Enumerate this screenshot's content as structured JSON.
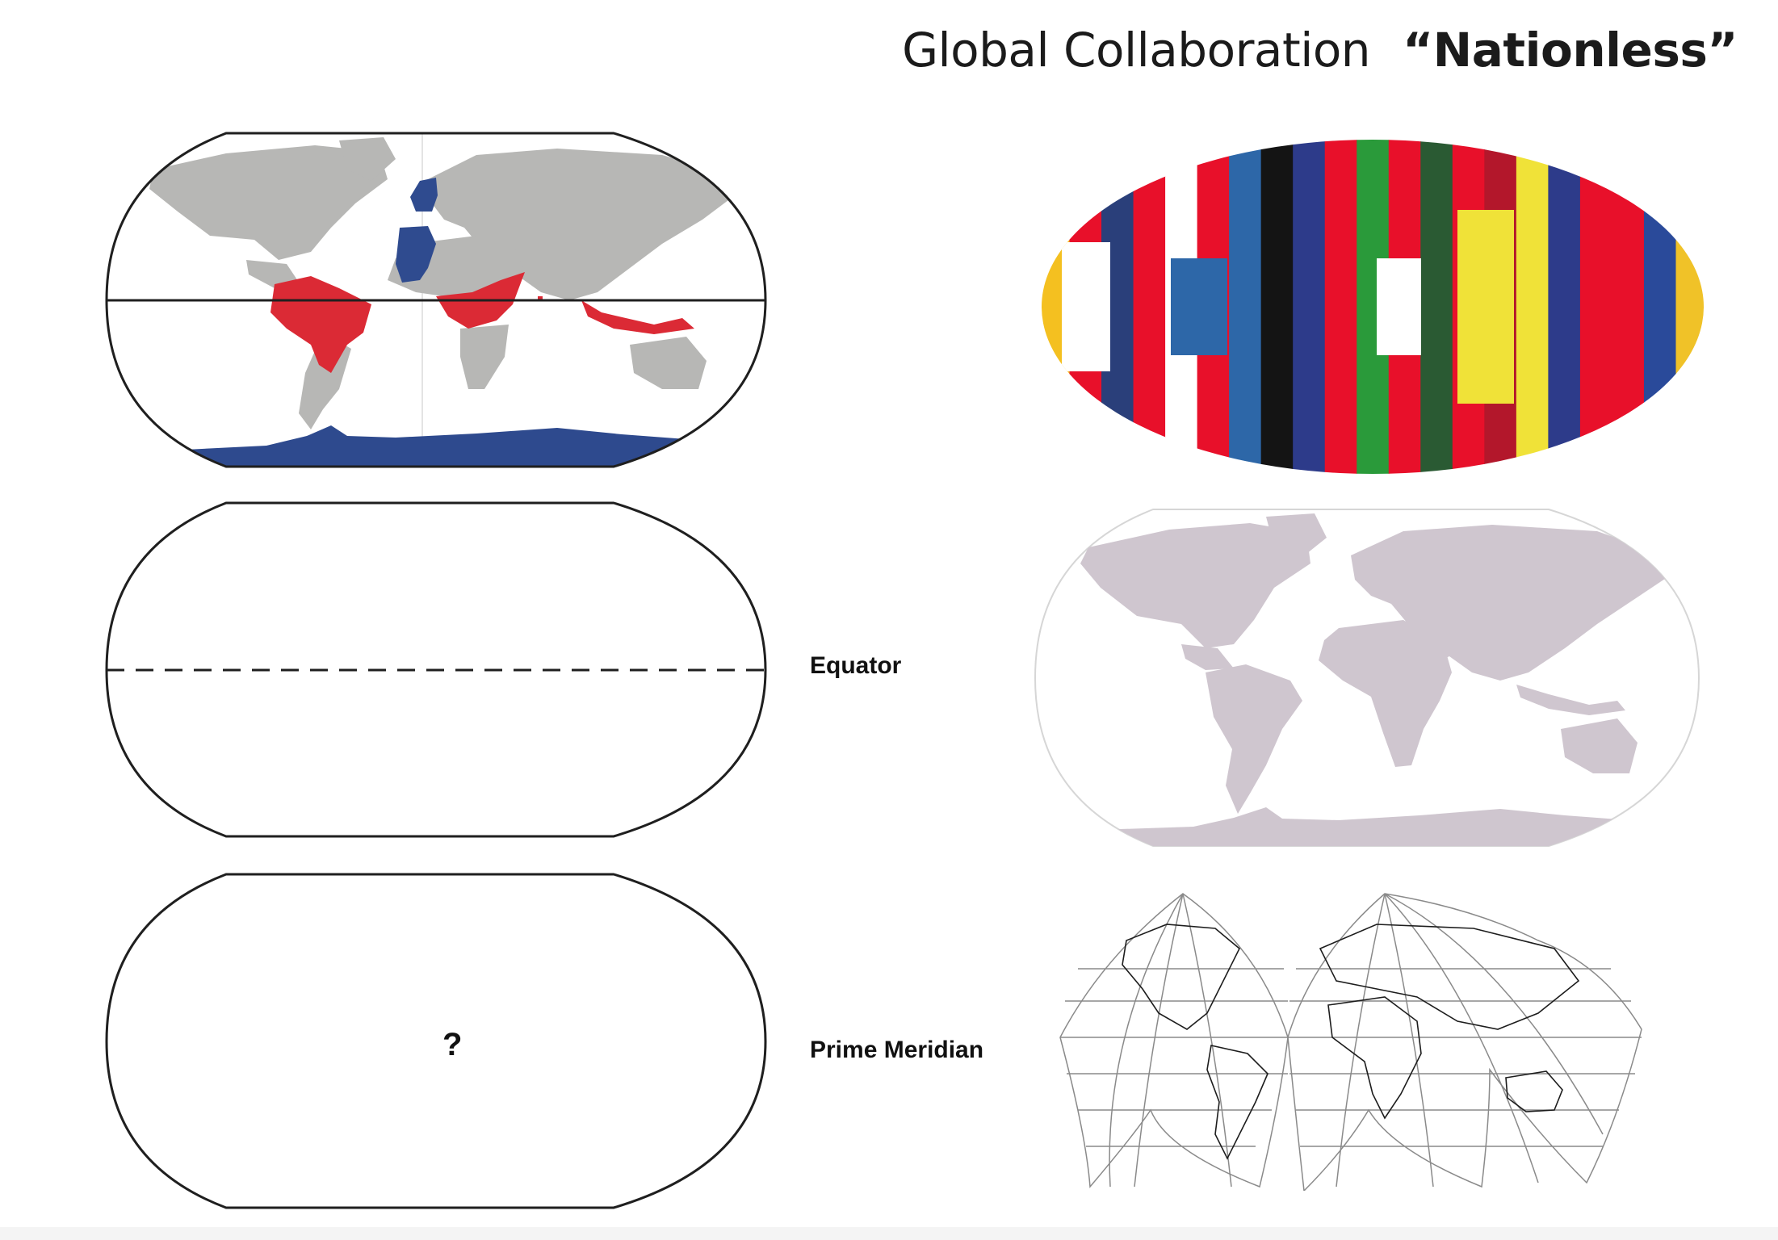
{
  "title": {
    "main": "Global Collaboration",
    "emphasis": "“Nationless”"
  },
  "labels": {
    "equator": "Equator",
    "prime_meridian": "Prime Meridian",
    "unknown_marker": "?"
  },
  "colors": {
    "land_gray": "#b7b7b5",
    "highlight_red": "#db2a35",
    "highlight_blue": "#2f4b8f",
    "antarctica_blue": "#2e4a8e",
    "mauve_land": "#cfc6cf",
    "outline": "#1f1f1f"
  },
  "flag_stripes": [
    "#f4c020",
    "#e8102a",
    "#2a3f7a",
    "#e8102a",
    "#ffffff",
    "#e8102a",
    "#2d67a8",
    "#141414",
    "#2d3b8a",
    "#e8102a",
    "#2a9a3a",
    "#e8102a",
    "#2a5a33",
    "#e8102a",
    "#b3172b",
    "#f0e238",
    "#2d3b8a",
    "#e8102a",
    "#e8102a",
    "#2a4a9a",
    "#f0c228"
  ]
}
